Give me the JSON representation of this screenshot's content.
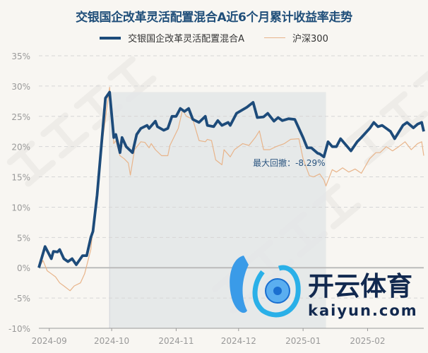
{
  "chart_data": {
    "type": "line",
    "title": "交银国企改革灵活配置混合A近6个月累计收益率走势",
    "xlabel": "",
    "ylabel": "",
    "ylim": [
      -10,
      35
    ],
    "xlim": [
      "2024-08-27",
      "2025-02-28"
    ],
    "yticks": [
      "35%",
      "30%",
      "25%",
      "20%",
      "15%",
      "10%",
      "5%",
      "0%",
      "-5%",
      "-10%"
    ],
    "ytick_values": [
      35,
      30,
      25,
      20,
      15,
      10,
      5,
      0,
      -5,
      -10
    ],
    "xticks": [
      "2024-09",
      "2024-10",
      "2024-11",
      "2024-12",
      "2025-01",
      "2025-02"
    ],
    "xtick_dates": [
      "2024-09-01",
      "2024-10-01",
      "2024-11-01",
      "2024-12-01",
      "2025-01-01",
      "2025-02-01"
    ],
    "grid": true,
    "legend": "top",
    "series": [
      {
        "name": "交银国企改革灵活配置混合A",
        "color": "#1d4b7a",
        "points": [
          [
            "2024-08-27",
            0
          ],
          [
            "2024-08-30",
            3.5
          ],
          [
            "2024-09-02",
            1.5
          ],
          [
            "2024-09-03",
            2.7
          ],
          [
            "2024-09-05",
            2.6
          ],
          [
            "2024-09-06",
            3.0
          ],
          [
            "2024-09-08",
            1.5
          ],
          [
            "2024-09-10",
            1.0
          ],
          [
            "2024-09-12",
            1.5
          ],
          [
            "2024-09-14",
            0.5
          ],
          [
            "2024-09-17",
            2.0
          ],
          [
            "2024-09-19",
            2.0
          ],
          [
            "2024-09-21",
            5.0
          ],
          [
            "2024-09-22",
            6.0
          ],
          [
            "2024-09-24",
            12
          ],
          [
            "2024-09-26",
            20
          ],
          [
            "2024-09-28",
            28
          ],
          [
            "2024-09-30",
            29
          ],
          [
            "2024-10-02",
            21.5
          ],
          [
            "2024-10-03",
            22
          ],
          [
            "2024-10-05",
            19
          ],
          [
            "2024-10-06",
            21.5
          ],
          [
            "2024-10-08",
            20
          ],
          [
            "2024-10-11",
            19
          ],
          [
            "2024-10-13",
            22
          ],
          [
            "2024-10-15",
            23
          ],
          [
            "2024-10-18",
            23.5
          ],
          [
            "2024-10-19",
            23
          ],
          [
            "2024-10-22",
            24.2
          ],
          [
            "2024-10-23",
            23.3
          ],
          [
            "2024-10-26",
            22.7
          ],
          [
            "2024-10-28",
            23
          ],
          [
            "2024-10-30",
            25
          ],
          [
            "2024-11-01",
            25
          ],
          [
            "2024-11-03",
            26.3
          ],
          [
            "2024-11-05",
            25.8
          ],
          [
            "2024-11-07",
            26.3
          ],
          [
            "2024-11-09",
            24.5
          ],
          [
            "2024-11-12",
            24
          ],
          [
            "2024-11-15",
            25
          ],
          [
            "2024-11-16",
            23.5
          ],
          [
            "2024-11-19",
            23.3
          ],
          [
            "2024-11-21",
            24.3
          ],
          [
            "2024-11-23",
            23.5
          ],
          [
            "2024-11-26",
            24
          ],
          [
            "2024-11-27",
            23.5
          ],
          [
            "2024-11-30",
            25.5
          ],
          [
            "2024-12-05",
            26.5
          ],
          [
            "2024-12-08",
            27.3
          ],
          [
            "2024-12-10",
            24.8
          ],
          [
            "2024-12-13",
            24.9
          ],
          [
            "2024-12-15",
            25.5
          ],
          [
            "2024-12-18",
            24.2
          ],
          [
            "2024-12-20",
            24.8
          ],
          [
            "2024-12-22",
            24.3
          ],
          [
            "2024-12-25",
            24.6
          ],
          [
            "2024-12-28",
            24.5
          ],
          [
            "2025-01-01",
            21.5
          ],
          [
            "2025-01-03",
            19.8
          ],
          [
            "2025-01-05",
            19.8
          ],
          [
            "2025-01-08",
            18.9
          ],
          [
            "2025-01-09",
            18.8
          ],
          [
            "2025-01-11",
            18.3
          ],
          [
            "2025-01-13",
            20.8
          ],
          [
            "2025-01-15",
            20
          ],
          [
            "2025-01-17",
            20
          ],
          [
            "2025-01-19",
            21.3
          ],
          [
            "2025-01-21",
            20.5
          ],
          [
            "2025-01-24",
            19.3
          ],
          [
            "2025-01-27",
            20.8
          ],
          [
            "2025-01-29",
            21.5
          ],
          [
            "2025-02-02",
            23
          ],
          [
            "2025-02-04",
            24
          ],
          [
            "2025-02-06",
            23.3
          ],
          [
            "2025-02-08",
            23.5
          ],
          [
            "2025-02-10",
            23
          ],
          [
            "2025-02-12",
            22.5
          ],
          [
            "2025-02-14",
            21.3
          ],
          [
            "2025-02-18",
            23.5
          ],
          [
            "2025-02-20",
            24
          ],
          [
            "2025-02-23",
            23.1
          ],
          [
            "2025-02-25",
            23.7
          ],
          [
            "2025-02-27",
            24
          ],
          [
            "2025-02-28",
            22.5
          ]
        ]
      },
      {
        "name": "沪深300",
        "color": "#e8b48a",
        "points": [
          [
            "2024-08-27",
            0
          ],
          [
            "2024-08-29",
            1.2
          ],
          [
            "2024-08-31",
            -0.5
          ],
          [
            "2024-09-02",
            -1
          ],
          [
            "2024-09-04",
            -1.5
          ],
          [
            "2024-09-06",
            -2.5
          ],
          [
            "2024-09-08",
            -3
          ],
          [
            "2024-09-11",
            -3.8
          ],
          [
            "2024-09-13",
            -3
          ],
          [
            "2024-09-16",
            -2.5
          ],
          [
            "2024-09-18",
            -1
          ],
          [
            "2024-09-21",
            3
          ],
          [
            "2024-09-23",
            10
          ],
          [
            "2024-09-27",
            22
          ],
          [
            "2024-09-30",
            29.8
          ],
          [
            "2024-10-02",
            20.5
          ],
          [
            "2024-10-03",
            21
          ],
          [
            "2024-10-05",
            18.5
          ],
          [
            "2024-10-07",
            18
          ],
          [
            "2024-10-09",
            17.3
          ],
          [
            "2024-10-10",
            15.3
          ],
          [
            "2024-10-12",
            19.5
          ],
          [
            "2024-10-15",
            20.8
          ],
          [
            "2024-10-17",
            20.7
          ],
          [
            "2024-10-19",
            19.8
          ],
          [
            "2024-10-20",
            20.5
          ],
          [
            "2024-10-22",
            19.5
          ],
          [
            "2024-10-25",
            18.5
          ],
          [
            "2024-10-28",
            18.5
          ],
          [
            "2024-10-29",
            20.2
          ],
          [
            "2024-11-02",
            23
          ],
          [
            "2024-11-04",
            26
          ],
          [
            "2024-11-06",
            25
          ],
          [
            "2024-11-09",
            24.5
          ],
          [
            "2024-11-12",
            21
          ],
          [
            "2024-11-15",
            20.8
          ],
          [
            "2024-11-16",
            21.2
          ],
          [
            "2024-11-18",
            21
          ],
          [
            "2024-11-20",
            17.8
          ],
          [
            "2024-11-23",
            17
          ],
          [
            "2024-11-24",
            19.5
          ],
          [
            "2024-11-27",
            18.3
          ],
          [
            "2024-11-29",
            19.5
          ],
          [
            "2024-12-03",
            20.5
          ],
          [
            "2024-12-06",
            20.2
          ],
          [
            "2024-12-09",
            21.5
          ],
          [
            "2024-12-11",
            22.6
          ],
          [
            "2024-12-13",
            19.5
          ],
          [
            "2024-12-16",
            19.5
          ],
          [
            "2024-12-19",
            20
          ],
          [
            "2024-12-23",
            20.5
          ],
          [
            "2024-12-26",
            21.2
          ],
          [
            "2024-12-30",
            21.3
          ],
          [
            "2025-01-01",
            18
          ],
          [
            "2025-01-04",
            15.2
          ],
          [
            "2025-01-06",
            15
          ],
          [
            "2025-01-09",
            15.5
          ],
          [
            "2025-01-11",
            14.5
          ],
          [
            "2025-01-12",
            13.5
          ],
          [
            "2025-01-15",
            16.2
          ],
          [
            "2025-01-17",
            15.8
          ],
          [
            "2025-01-20",
            16.5
          ],
          [
            "2025-01-23",
            15.8
          ],
          [
            "2025-01-26",
            16.3
          ],
          [
            "2025-01-29",
            15.6
          ],
          [
            "2025-02-02",
            18
          ],
          [
            "2025-02-05",
            19
          ],
          [
            "2025-02-07",
            19
          ],
          [
            "2025-02-10",
            20
          ],
          [
            "2025-02-13",
            19.3
          ],
          [
            "2025-02-16",
            20
          ],
          [
            "2025-02-19",
            20.8
          ],
          [
            "2025-02-22",
            19.5
          ],
          [
            "2025-02-25",
            20.5
          ],
          [
            "2025-02-27",
            20.8
          ],
          [
            "2025-02-28",
            18.5
          ]
        ]
      }
    ],
    "annotations": [
      {
        "text": "最大回撤：-8.29%",
        "shaded_range": [
          "2024-09-30",
          "2025-01-12"
        ],
        "shade_color": "#e3e6e8"
      }
    ]
  },
  "watermark": {
    "text": "证券之星"
  },
  "logo": {
    "cn": "开云体育",
    "en": "kaiyun.com"
  }
}
